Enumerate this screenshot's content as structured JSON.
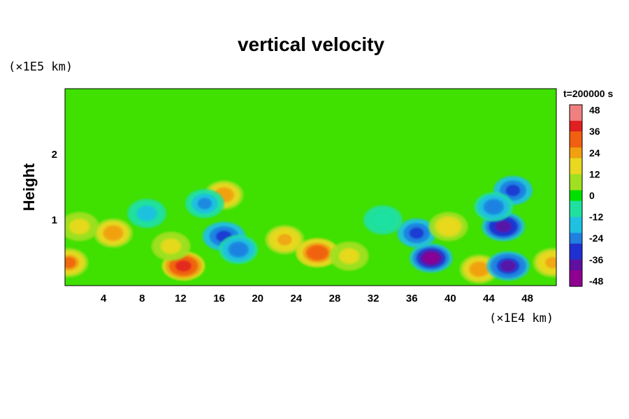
{
  "chart_data": {
    "type": "heatmap",
    "title": "vertical velocity",
    "xlabel": "",
    "ylabel": "Height",
    "x_unit": "(×1E4 km)",
    "y_unit": "(×1E5 km)",
    "time_label": "t=200000 s",
    "xlim": [
      0,
      51
    ],
    "ylim": [
      0,
      3
    ],
    "x_ticks": [
      "4",
      "8",
      "12",
      "16",
      "20",
      "24",
      "28",
      "32",
      "36",
      "40",
      "44",
      "48"
    ],
    "y_ticks": [
      "1",
      "2"
    ],
    "colorbar": {
      "vmin": -51,
      "vmax": 51,
      "ticks": [
        "48",
        "36",
        "24",
        "12",
        "0",
        "-12",
        "-24",
        "-36",
        "-48"
      ],
      "colors": [
        "#f08080",
        "#e02020",
        "#f06010",
        "#f0a010",
        "#e8d820",
        "#a0e020",
        "#00e000",
        "#20e0a0",
        "#20c0e0",
        "#2080e0",
        "#2030d0",
        "#6010a0",
        "#900090"
      ]
    },
    "features": [
      {
        "x": 0.4,
        "y": 0.35,
        "value": 28
      },
      {
        "x": 1.5,
        "y": 0.9,
        "value": 14
      },
      {
        "x": 5.0,
        "y": 0.8,
        "value": 24
      },
      {
        "x": 12.3,
        "y": 0.3,
        "value": 40
      },
      {
        "x": 11.0,
        "y": 0.6,
        "value": 16
      },
      {
        "x": 16.5,
        "y": 1.38,
        "value": 26
      },
      {
        "x": 16.5,
        "y": 0.75,
        "value": -32
      },
      {
        "x": 18.0,
        "y": 0.55,
        "value": -26
      },
      {
        "x": 14.5,
        "y": 1.25,
        "value": -20
      },
      {
        "x": 22.8,
        "y": 0.7,
        "value": 22
      },
      {
        "x": 26.2,
        "y": 0.5,
        "value": 34
      },
      {
        "x": 29.5,
        "y": 0.45,
        "value": 14
      },
      {
        "x": 38.0,
        "y": 0.42,
        "value": -46
      },
      {
        "x": 36.5,
        "y": 0.8,
        "value": -30
      },
      {
        "x": 39.8,
        "y": 0.9,
        "value": 18
      },
      {
        "x": 43.0,
        "y": 0.25,
        "value": 26
      },
      {
        "x": 46.0,
        "y": 0.3,
        "value": -38
      },
      {
        "x": 45.5,
        "y": 0.9,
        "value": -40
      },
      {
        "x": 46.5,
        "y": 1.45,
        "value": -30
      },
      {
        "x": 44.5,
        "y": 1.2,
        "value": -26
      },
      {
        "x": 50.6,
        "y": 0.35,
        "value": 22
      },
      {
        "x": 8.5,
        "y": 1.1,
        "value": -14
      },
      {
        "x": 33.0,
        "y": 1.0,
        "value": -10
      }
    ]
  }
}
